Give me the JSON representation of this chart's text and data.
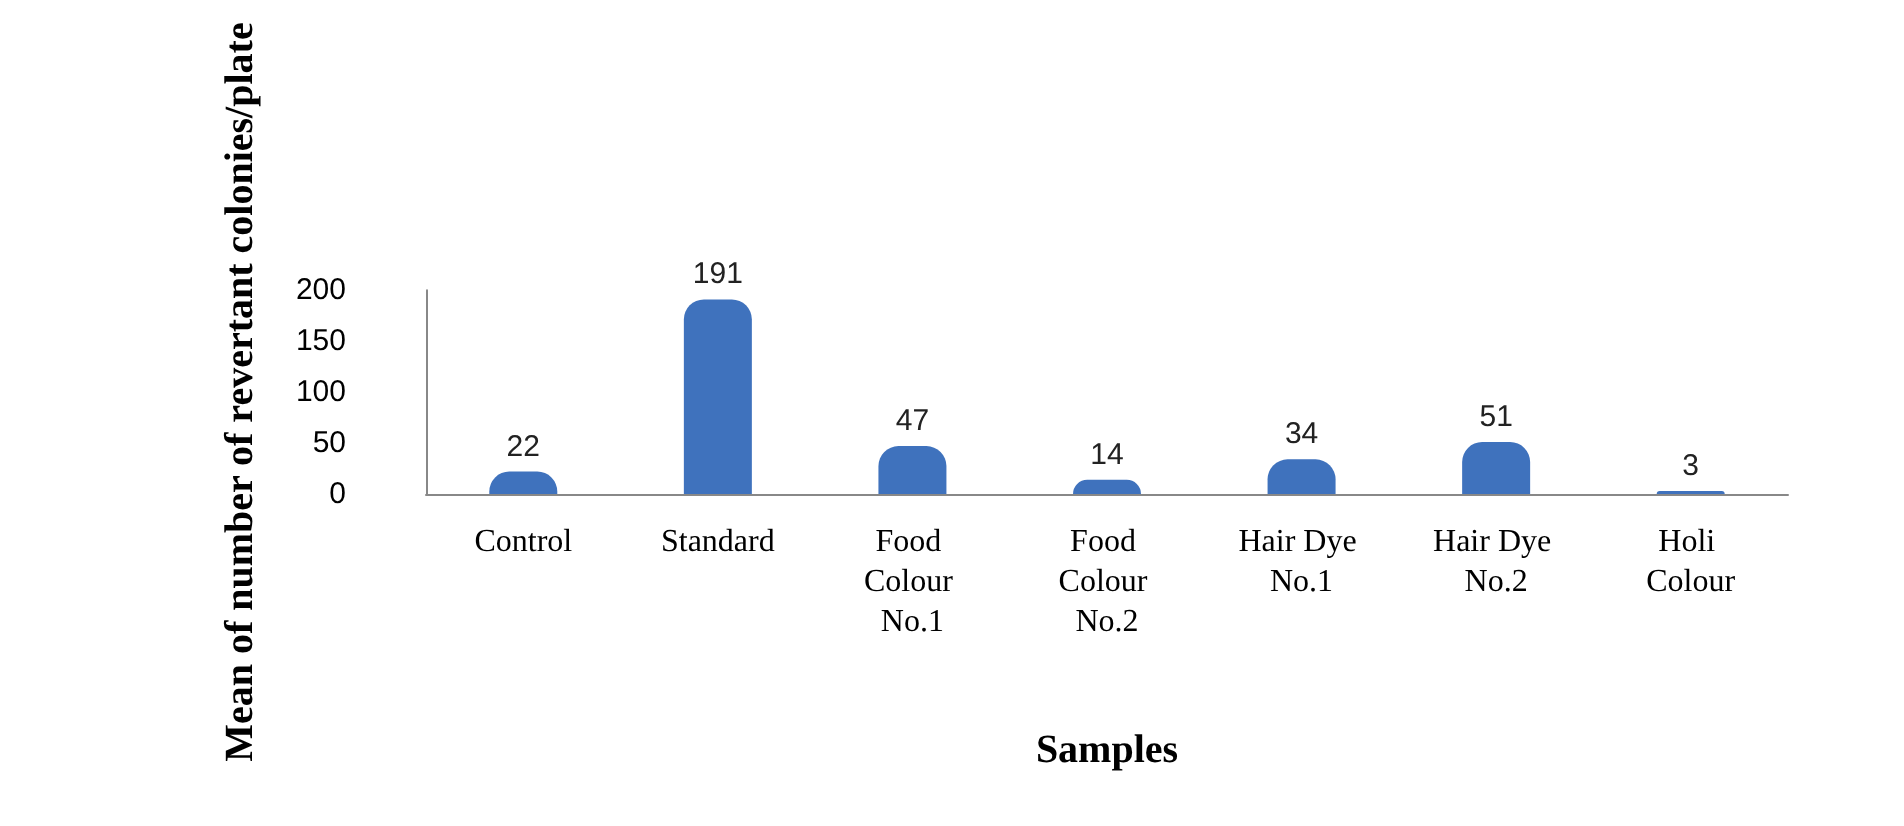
{
  "chart_data": {
    "type": "bar",
    "xlabel": "Samples",
    "ylabel": "Mean of number of revertant colonies/plate",
    "categories": [
      "Control",
      "Standard",
      "Food Colour No.1",
      "Food Colour No.2",
      "Hair Dye No.1",
      "Hair Dye No.2",
      "Holi Colour"
    ],
    "values": [
      22,
      191,
      47,
      14,
      34,
      51,
      3
    ],
    "color": "#3f72bd",
    "ylim": [
      0,
      200
    ],
    "yticks": [
      0,
      50,
      100,
      150,
      200
    ],
    "grid": false,
    "data_labels": true
  }
}
